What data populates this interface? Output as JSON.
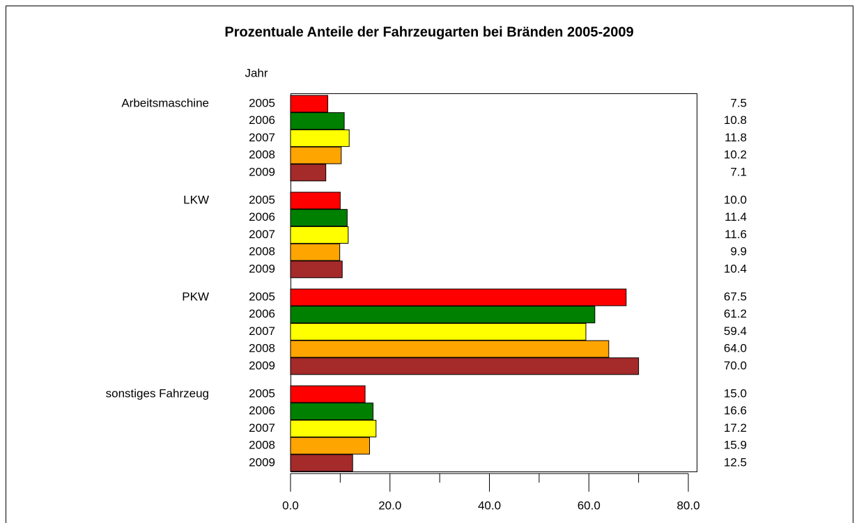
{
  "chart_data": {
    "type": "hbar",
    "title": "Prozentuale Anteile der Fahrzeugarten bei Bränden 2005-2009",
    "ylabel": "Jahr",
    "categories": [
      "Arbeitsmaschine",
      "LKW",
      "PKW",
      "sonstiges Fahrzeug"
    ],
    "series": [
      {
        "name": "2005",
        "color": "#ff0000",
        "values": [
          7.5,
          10.0,
          67.5,
          15.0
        ],
        "value_labels": [
          "7.5",
          "10.0",
          "67.5",
          "15.0"
        ]
      },
      {
        "name": "2006",
        "color": "#008000",
        "values": [
          10.8,
          11.4,
          61.2,
          16.6
        ],
        "value_labels": [
          "10.8",
          "11.4",
          "61.2",
          "16.6"
        ]
      },
      {
        "name": "2007",
        "color": "#ffff00",
        "values": [
          11.8,
          11.6,
          59.4,
          17.2
        ],
        "value_labels": [
          "11.8",
          "11.6",
          "59.4",
          "17.2"
        ]
      },
      {
        "name": "2008",
        "color": "#ffa500",
        "values": [
          10.2,
          9.9,
          64.0,
          15.9
        ],
        "value_labels": [
          "10.2",
          "9.9",
          "64.0",
          "15.9"
        ]
      },
      {
        "name": "2009",
        "color": "#a52a2a",
        "values": [
          7.1,
          10.4,
          70.0,
          12.5
        ],
        "value_labels": [
          "7.1",
          "10.4",
          "70.0",
          "12.5"
        ]
      }
    ],
    "xlim": [
      0,
      80
    ],
    "xticks": [
      {
        "value": 0,
        "label": "0.0"
      },
      {
        "value": 20,
        "label": "20.0"
      },
      {
        "value": 40,
        "label": "40.0"
      },
      {
        "value": 60,
        "label": "60.0"
      },
      {
        "value": 80,
        "label": "80.0"
      }
    ],
    "xticks_minor": [
      10,
      30,
      50,
      70
    ]
  }
}
